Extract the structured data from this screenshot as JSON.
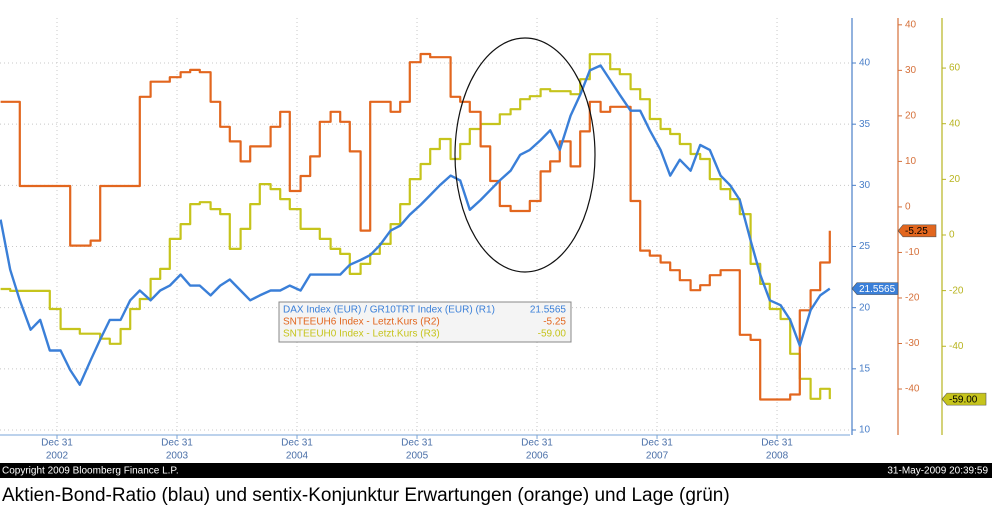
{
  "chart_data": {
    "type": "line",
    "title": "Aktien-Bond-Ratio (blau) und sentix-Konjunktur Erwartungen (orange) und Lage (grün)",
    "copyright": "Copyright 2009 Bloomberg Finance L.P.",
    "timestamp": "31-May-2009 20:39:59",
    "x": [
      2002.53,
      2002.61,
      2002.69,
      2002.78,
      2002.86,
      2002.94,
      2003.03,
      2003.11,
      2003.19,
      2003.28,
      2003.36,
      2003.44,
      2003.53,
      2003.61,
      2003.69,
      2003.78,
      2003.86,
      2003.94,
      2004.03,
      2004.11,
      2004.19,
      2004.28,
      2004.36,
      2004.44,
      2004.53,
      2004.61,
      2004.69,
      2004.78,
      2004.86,
      2004.94,
      2005.03,
      2005.11,
      2005.19,
      2005.28,
      2005.36,
      2005.44,
      2005.53,
      2005.61,
      2005.69,
      2005.78,
      2005.86,
      2005.94,
      2006.03,
      2006.11,
      2006.19,
      2006.28,
      2006.36,
      2006.44,
      2006.53,
      2006.61,
      2006.69,
      2006.78,
      2006.86,
      2006.94,
      2007.03,
      2007.11,
      2007.19,
      2007.28,
      2007.36,
      2007.44,
      2007.53,
      2007.61,
      2007.69,
      2007.78,
      2007.86,
      2007.94,
      2008.03,
      2008.11,
      2008.19,
      2008.28,
      2008.36,
      2008.44,
      2008.53,
      2008.61,
      2008.69,
      2008.78,
      2008.86,
      2008.94,
      2009.03,
      2009.11,
      2009.19,
      2009.28,
      2009.36,
      2009.44
    ],
    "xlim": [
      2002.525,
      2009.608
    ],
    "xticks": [
      {
        "value": 2003,
        "label": "Dec 31"
      },
      {
        "value": 2004,
        "label": "Dec 31"
      },
      {
        "value": 2005,
        "label": "Dec 31"
      },
      {
        "value": 2006,
        "label": "Dec 31"
      },
      {
        "value": 2007,
        "label": "Dec 31"
      },
      {
        "value": 2008,
        "label": "Dec 31"
      },
      {
        "value": 2009,
        "label": "Dec 31"
      }
    ],
    "xtick_years": [
      "2002",
      "2003",
      "2004",
      "2005",
      "2006",
      "2007",
      "2008"
    ],
    "ylim": [
      9.59,
      43.68
    ],
    "yticks": [
      10,
      15,
      20,
      25,
      30,
      35,
      40
    ],
    "y2lim": [
      -50.1,
      41.5
    ],
    "y2ticks": [
      -40,
      -30,
      -20,
      -10,
      0,
      10,
      20,
      30,
      40
    ],
    "y3lim": [
      -71.9,
      78
    ],
    "y3ticks": [
      -40,
      -20,
      0,
      20,
      40,
      60
    ],
    "grid": true,
    "series": [
      {
        "name": "DAX Index (EUR) / GR10TRT Index (EUR) (R1)",
        "color": "#3a7fd8",
        "axis": "y",
        "step": false,
        "last_label": "21.5565",
        "values": [
          27.2,
          23.1,
          20.6,
          18.2,
          19.0,
          16.5,
          16.5,
          14.9,
          13.7,
          15.7,
          17.4,
          19.0,
          19.0,
          20.6,
          21.4,
          20.6,
          21.4,
          21.8,
          22.7,
          21.8,
          21.8,
          21.0,
          21.8,
          22.3,
          21.4,
          20.6,
          21.0,
          21.4,
          21.4,
          21.8,
          21.4,
          22.7,
          22.7,
          22.7,
          22.7,
          23.5,
          23.9,
          24.3,
          25.1,
          26.3,
          26.7,
          27.6,
          28.4,
          29.2,
          30.0,
          30.8,
          30.4,
          28.0,
          28.8,
          29.6,
          30.4,
          31.2,
          32.5,
          32.9,
          33.7,
          34.5,
          32.9,
          35.7,
          37.4,
          39.4,
          39.8,
          38.6,
          37.4,
          36.1,
          36.1,
          34.5,
          32.9,
          30.8,
          32.1,
          31.2,
          33.3,
          32.9,
          30.8,
          30.0,
          28.8,
          25.5,
          22.7,
          20.6,
          20.2,
          19.0,
          16.9,
          19.8,
          21.0,
          21.5565
        ]
      },
      {
        "name": "SNTEEUH6 Index - Letzt.Kurs (R2)",
        "color": "#e2661e",
        "axis": "y2",
        "step": true,
        "last_label": "-5.25",
        "values": [
          23.1,
          23.1,
          4.6,
          4.6,
          4.6,
          4.6,
          4.6,
          -8.5,
          -8.5,
          -7.4,
          4.6,
          4.6,
          4.6,
          4.6,
          24.2,
          27.5,
          27.5,
          28.5,
          29.6,
          30.1,
          29.6,
          23.1,
          17.6,
          14.4,
          10.0,
          13.3,
          13.3,
          17.6,
          20.9,
          3.5,
          6.8,
          11.1,
          18.7,
          20.9,
          18.7,
          12.2,
          -5.2,
          23.1,
          23.1,
          20.9,
          23.1,
          31.8,
          33.6,
          32.9,
          32.9,
          24.2,
          23.1,
          20.9,
          13.3,
          5.7,
          0.2,
          -0.9,
          -0.9,
          1.3,
          7.8,
          10.0,
          14.4,
          8.9,
          16.6,
          23.1,
          20.9,
          22.0,
          22.0,
          1.3,
          -9.6,
          -10.7,
          -12.2,
          -13.9,
          -16.1,
          -18.3,
          -17.2,
          -15.0,
          -13.9,
          -13.9,
          -28.1,
          -29.2,
          -42.3,
          -42.3,
          -42.3,
          -41.2,
          -22.7,
          -18.3,
          -12.2,
          -5.25
        ]
      },
      {
        "name": "SNTEEUH0 Index - Letzt.Kurs (R3)",
        "color": "#c6c41c",
        "axis": "y3",
        "step": true,
        "last_label": "-59.00",
        "values": [
          -19.4,
          -20.1,
          -20.1,
          -20.1,
          -20.1,
          -26.6,
          -33.8,
          -33.8,
          -35.5,
          -35.5,
          -37.3,
          -39.1,
          -33.8,
          -26.6,
          -23.0,
          -15.8,
          -12.2,
          -1.4,
          3.9,
          11.1,
          11.8,
          9.3,
          7.5,
          -5.0,
          2.2,
          11.1,
          18.3,
          16.5,
          12.9,
          9.3,
          2.2,
          2.2,
          -1.4,
          -5.0,
          -6.8,
          -14.0,
          -10.4,
          -6.8,
          -3.2,
          3.9,
          11.1,
          20.1,
          25.5,
          30.9,
          34.5,
          27.3,
          32.7,
          38.1,
          39.9,
          39.9,
          43.4,
          45.2,
          48.8,
          49.9,
          52.4,
          51.7,
          51.7,
          50.6,
          56.0,
          65.0,
          65.0,
          59.6,
          57.8,
          52.4,
          48.8,
          41.7,
          38.1,
          36.3,
          32.7,
          29.1,
          27.3,
          20.1,
          16.5,
          12.9,
          7.5,
          -10.4,
          -17.6,
          -26.6,
          -30.2,
          -42.7,
          -51.7,
          -58.9,
          -55.3,
          -59.0
        ]
      }
    ]
  }
}
